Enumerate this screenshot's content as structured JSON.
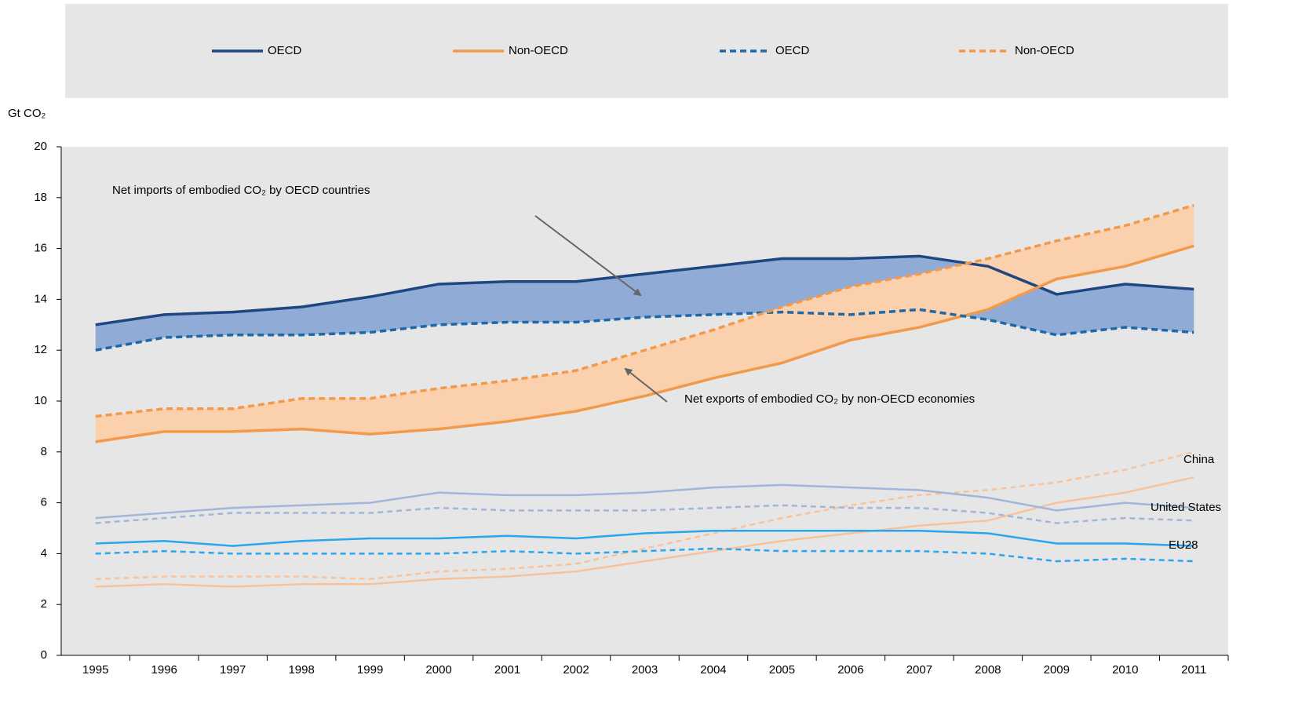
{
  "chart_data": {
    "type": "line",
    "y_label": "Gt CO₂",
    "categories": [
      "1995",
      "1996",
      "1997",
      "1998",
      "1999",
      "2000",
      "2001",
      "2002",
      "2003",
      "2004",
      "2005",
      "2006",
      "2007",
      "2008",
      "2009",
      "2010",
      "2011"
    ],
    "ylim": [
      0,
      20
    ],
    "yticks": [
      0,
      2,
      4,
      6,
      8,
      10,
      12,
      14,
      16,
      18,
      20
    ],
    "series": [
      {
        "name": "OECD",
        "color": "#1f4680",
        "dashed": false,
        "values": [
          13.0,
          13.4,
          13.5,
          13.7,
          14.1,
          14.6,
          14.7,
          14.7,
          15.0,
          15.3,
          15.6,
          15.6,
          15.7,
          15.3,
          14.2,
          14.6,
          14.4
        ]
      },
      {
        "name": "Non-OECD",
        "color": "#f29a4a",
        "dashed": false,
        "values": [
          8.4,
          8.8,
          8.8,
          8.9,
          8.7,
          8.9,
          9.2,
          9.6,
          10.2,
          10.9,
          11.5,
          12.4,
          12.9,
          13.6,
          14.8,
          15.3,
          16.1
        ]
      },
      {
        "name": "OECD",
        "color": "#1c68a8",
        "dashed": true,
        "values": [
          12.0,
          12.5,
          12.6,
          12.6,
          12.7,
          13.0,
          13.1,
          13.1,
          13.3,
          13.4,
          13.5,
          13.4,
          13.6,
          13.2,
          12.6,
          12.9,
          12.7
        ]
      },
      {
        "name": "Non-OECD",
        "color": "#f29a4a",
        "dashed": true,
        "values": [
          9.4,
          9.7,
          9.7,
          10.1,
          10.1,
          10.5,
          10.8,
          11.2,
          12.0,
          12.8,
          13.7,
          14.5,
          15.0,
          15.6,
          16.3,
          16.9,
          17.7
        ]
      }
    ],
    "bands": [
      {
        "between": [
          0,
          2
        ],
        "color": "#90acd6"
      },
      {
        "between": [
          3,
          1
        ],
        "color": "#fbd0ad"
      }
    ],
    "country_lines": [
      {
        "name": "China",
        "color": "#f8c39a",
        "values": [
          2.7,
          2.8,
          2.7,
          2.8,
          2.8,
          3.0,
          3.1,
          3.3,
          3.7,
          4.1,
          4.5,
          4.8,
          5.1,
          5.3,
          6.0,
          6.4,
          7.0
        ],
        "dashed_values": [
          3.0,
          3.1,
          3.1,
          3.1,
          3.0,
          3.3,
          3.4,
          3.6,
          4.2,
          4.8,
          5.4,
          5.9,
          6.3,
          6.5,
          6.8,
          7.3,
          8.0
        ]
      },
      {
        "name": "United States",
        "color": "#a2b6db",
        "values": [
          5.4,
          5.6,
          5.8,
          5.9,
          6.0,
          6.4,
          6.3,
          6.3,
          6.4,
          6.6,
          6.7,
          6.6,
          6.5,
          6.2,
          5.7,
          6.0,
          5.8
        ],
        "dashed_values": [
          5.2,
          5.4,
          5.6,
          5.6,
          5.6,
          5.8,
          5.7,
          5.7,
          5.7,
          5.8,
          5.9,
          5.8,
          5.8,
          5.6,
          5.2,
          5.4,
          5.3
        ]
      },
      {
        "name": "EU28",
        "color": "#2aa6ee",
        "values": [
          4.4,
          4.5,
          4.3,
          4.5,
          4.6,
          4.6,
          4.7,
          4.6,
          4.8,
          4.9,
          4.9,
          4.9,
          4.9,
          4.8,
          4.4,
          4.4,
          4.3
        ],
        "dashed_values": [
          4.0,
          4.1,
          4.0,
          4.0,
          4.0,
          4.0,
          4.1,
          4.0,
          4.1,
          4.2,
          4.1,
          4.1,
          4.1,
          4.0,
          3.7,
          3.8,
          3.7
        ]
      }
    ],
    "annotations": [
      "Net imports of embodied CO₂ by OECD countries",
      "Net exports of embodied CO₂ by non-OECD economies"
    ]
  }
}
